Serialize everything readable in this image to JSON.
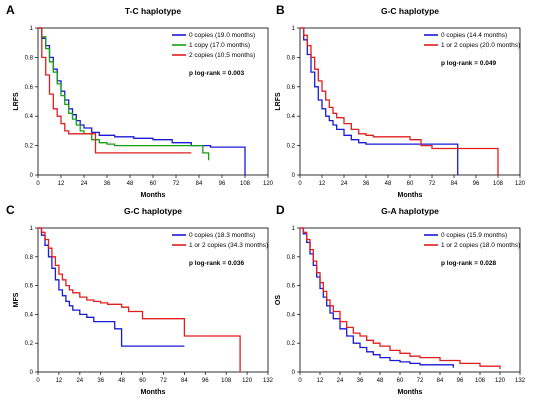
{
  "chart_data": [
    {
      "panel": "A",
      "type": "line",
      "title": "T-C haplotype",
      "xlabel": "Months",
      "ylabel": "LRFS",
      "xlim": [
        0,
        120
      ],
      "ylim": [
        0,
        1
      ],
      "xticks": [
        "0",
        "12",
        "24",
        "36",
        "48",
        "60",
        "72",
        "84",
        "96",
        "108",
        "120"
      ],
      "yticks": [
        "0",
        "0.2",
        "0.4",
        "0.6",
        "0.8",
        "1"
      ],
      "p_text": "p log-rank = 0.003",
      "legend_position": "top-right",
      "series": [
        {
          "name": "0 copies (19.0 months)",
          "color": "#1a1ad6",
          "x": [
            0,
            2,
            4,
            6,
            8,
            10,
            12,
            14,
            16,
            18,
            20,
            22,
            24,
            28,
            32,
            40,
            50,
            60,
            70,
            80,
            90,
            100,
            108
          ],
          "y": [
            1,
            0.93,
            0.88,
            0.8,
            0.72,
            0.64,
            0.57,
            0.51,
            0.45,
            0.41,
            0.37,
            0.34,
            0.32,
            0.29,
            0.27,
            0.26,
            0.25,
            0.24,
            0.22,
            0.2,
            0.19,
            0.19,
            0
          ]
        },
        {
          "name": "1 copy (17.0 months)",
          "color": "#14a014",
          "x": [
            0,
            2,
            4,
            6,
            8,
            10,
            12,
            14,
            16,
            18,
            20,
            22,
            24,
            28,
            32,
            36,
            40,
            50,
            60,
            70,
            80,
            86,
            89
          ],
          "y": [
            1,
            0.94,
            0.86,
            0.77,
            0.7,
            0.62,
            0.54,
            0.48,
            0.42,
            0.38,
            0.34,
            0.3,
            0.28,
            0.24,
            0.22,
            0.21,
            0.2,
            0.2,
            0.2,
            0.2,
            0.2,
            0.15,
            0.1
          ]
        },
        {
          "name": "2 copies (10.5 months)",
          "color": "#e01e1e",
          "x": [
            0,
            2,
            4,
            6,
            8,
            10,
            12,
            14,
            16,
            18,
            20,
            24,
            28,
            30,
            40,
            50,
            60,
            70,
            80
          ],
          "y": [
            1,
            0.8,
            0.68,
            0.55,
            0.45,
            0.4,
            0.35,
            0.3,
            0.28,
            0.28,
            0.28,
            0.28,
            0.28,
            0.15,
            0.15,
            0.15,
            0.15,
            0.15,
            0.15
          ]
        }
      ]
    },
    {
      "panel": "B",
      "type": "line",
      "title": "G-C haplotype",
      "xlabel": "Months",
      "ylabel": "LRFS",
      "xlim": [
        0,
        120
      ],
      "ylim": [
        0,
        1
      ],
      "xticks": [
        "0",
        "12",
        "24",
        "36",
        "48",
        "60",
        "72",
        "84",
        "96",
        "108",
        "120"
      ],
      "yticks": [
        "0",
        "0.2",
        "0.4",
        "0.6",
        "0.8",
        "1"
      ],
      "p_text": "p log-rank = 0.049",
      "legend_position": "top-right",
      "series": [
        {
          "name": "0 copies (14.4 months)",
          "color": "#1a1ad6",
          "x": [
            0,
            2,
            4,
            6,
            8,
            10,
            12,
            14,
            16,
            18,
            20,
            24,
            28,
            32,
            36,
            40,
            48,
            60,
            72,
            80,
            86
          ],
          "y": [
            1,
            0.92,
            0.82,
            0.7,
            0.6,
            0.51,
            0.45,
            0.4,
            0.37,
            0.34,
            0.31,
            0.27,
            0.24,
            0.22,
            0.21,
            0.21,
            0.21,
            0.21,
            0.21,
            0.21,
            0
          ]
        },
        {
          "name": "1 or 2 copies (20.0 months)",
          "color": "#e01e1e",
          "x": [
            0,
            2,
            4,
            6,
            8,
            10,
            12,
            14,
            16,
            18,
            20,
            24,
            28,
            32,
            36,
            40,
            48,
            60,
            66,
            72,
            84,
            96,
            108
          ],
          "y": [
            1,
            0.95,
            0.88,
            0.8,
            0.72,
            0.64,
            0.57,
            0.51,
            0.46,
            0.42,
            0.39,
            0.35,
            0.31,
            0.28,
            0.27,
            0.26,
            0.26,
            0.24,
            0.2,
            0.18,
            0.18,
            0.18,
            0
          ]
        }
      ]
    },
    {
      "panel": "C",
      "type": "line",
      "title": "G-C haplotype",
      "xlabel": "Months",
      "ylabel": "MFS",
      "xlim": [
        0,
        132
      ],
      "ylim": [
        0,
        1
      ],
      "xticks": [
        "0",
        "12",
        "24",
        "36",
        "48",
        "60",
        "72",
        "84",
        "96",
        "108",
        "120",
        "132"
      ],
      "yticks": [
        "0",
        "0.2",
        "0.4",
        "0.6",
        "0.8",
        "1"
      ],
      "p_text": "p log-rank = 0.036",
      "legend_position": "top-right",
      "series": [
        {
          "name": "0 copies (18.3 months)",
          "color": "#1a1ad6",
          "x": [
            0,
            2,
            4,
            6,
            8,
            10,
            12,
            14,
            16,
            18,
            20,
            24,
            28,
            32,
            36,
            40,
            44,
            48,
            60,
            70,
            84
          ],
          "y": [
            1,
            0.95,
            0.88,
            0.8,
            0.72,
            0.64,
            0.57,
            0.53,
            0.49,
            0.46,
            0.43,
            0.4,
            0.38,
            0.35,
            0.35,
            0.35,
            0.3,
            0.18,
            0.18,
            0.18,
            0.18
          ]
        },
        {
          "name": "1 or 2 copies (34.3 months)",
          "color": "#e01e1e",
          "x": [
            0,
            2,
            4,
            6,
            8,
            10,
            12,
            14,
            16,
            18,
            20,
            24,
            28,
            32,
            36,
            40,
            48,
            52,
            60,
            72,
            84,
            96,
            108,
            116
          ],
          "y": [
            1,
            0.97,
            0.92,
            0.86,
            0.8,
            0.74,
            0.68,
            0.64,
            0.6,
            0.57,
            0.55,
            0.52,
            0.5,
            0.49,
            0.48,
            0.47,
            0.45,
            0.42,
            0.37,
            0.37,
            0.25,
            0.25,
            0.25,
            0
          ]
        }
      ]
    },
    {
      "panel": "D",
      "type": "line",
      "title": "G-A haplotype",
      "xlabel": "Months",
      "ylabel": "OS",
      "xlim": [
        0,
        132
      ],
      "ylim": [
        0,
        1
      ],
      "xticks": [
        "0",
        "12",
        "24",
        "36",
        "48",
        "60",
        "72",
        "84",
        "96",
        "108",
        "120",
        "132"
      ],
      "yticks": [
        "0",
        "0.2",
        "0.4",
        "0.6",
        "0.8",
        "1"
      ],
      "p_text": "p log-rank = 0.028",
      "legend_position": "top-right",
      "series": [
        {
          "name": "0 copies (15.9 months)",
          "color": "#1a1ad6",
          "x": [
            0,
            2,
            4,
            6,
            8,
            10,
            12,
            14,
            16,
            18,
            20,
            24,
            28,
            32,
            36,
            40,
            44,
            48,
            54,
            60,
            66,
            72,
            78,
            84,
            90,
            92
          ],
          "y": [
            1,
            0.96,
            0.9,
            0.82,
            0.74,
            0.66,
            0.58,
            0.52,
            0.46,
            0.41,
            0.37,
            0.3,
            0.25,
            0.2,
            0.17,
            0.14,
            0.12,
            0.1,
            0.08,
            0.07,
            0.06,
            0.05,
            0.05,
            0.05,
            0.05,
            0.03
          ]
        },
        {
          "name": "1 or 2 copies (18.0 months)",
          "color": "#e01e1e",
          "x": [
            0,
            2,
            4,
            6,
            8,
            10,
            12,
            14,
            16,
            18,
            20,
            24,
            28,
            32,
            36,
            40,
            44,
            48,
            54,
            60,
            66,
            72,
            84,
            96,
            108,
            120
          ],
          "y": [
            1,
            0.97,
            0.92,
            0.85,
            0.77,
            0.69,
            0.62,
            0.56,
            0.5,
            0.46,
            0.42,
            0.35,
            0.31,
            0.27,
            0.25,
            0.22,
            0.2,
            0.18,
            0.15,
            0.13,
            0.11,
            0.1,
            0.08,
            0.06,
            0.04,
            0.02
          ]
        }
      ]
    }
  ]
}
